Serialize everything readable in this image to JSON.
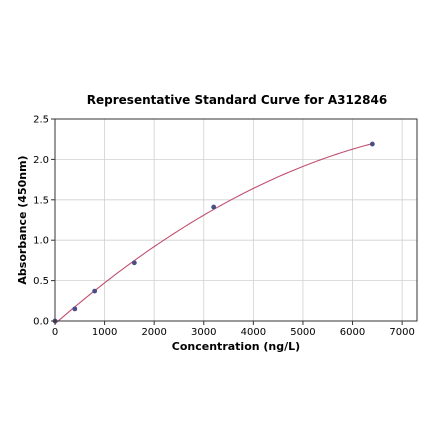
{
  "chart_data": {
    "type": "scatter",
    "title": "Representative Standard Curve for A312846",
    "xlabel": "Concentration (ng/L)",
    "ylabel": "Absorbance (450nm)",
    "xlim": [
      0,
      7300
    ],
    "ylim": [
      0,
      2.5
    ],
    "xticks": [
      0,
      1000,
      2000,
      3000,
      4000,
      5000,
      6000,
      7000
    ],
    "xtick_labels": [
      "0",
      "1000",
      "2000",
      "3000",
      "4000",
      "5000",
      "6000",
      "7000"
    ],
    "yticks": [
      0,
      0.5,
      1.0,
      1.5,
      2.0,
      2.5
    ],
    "ytick_labels": [
      "0.0",
      "0.5",
      "1.0",
      "1.5",
      "2.0",
      "2.5"
    ],
    "grid": true,
    "series": [
      {
        "x": [
          0,
          400,
          800,
          1600,
          3200,
          6400
        ],
        "y": [
          0.0,
          0.15,
          0.37,
          0.72,
          1.41,
          2.19
        ]
      }
    ],
    "fit_curve": "smooth fitted curve through points",
    "colors": {
      "points": "#4b4e86",
      "curve": "#c0506e"
    }
  }
}
